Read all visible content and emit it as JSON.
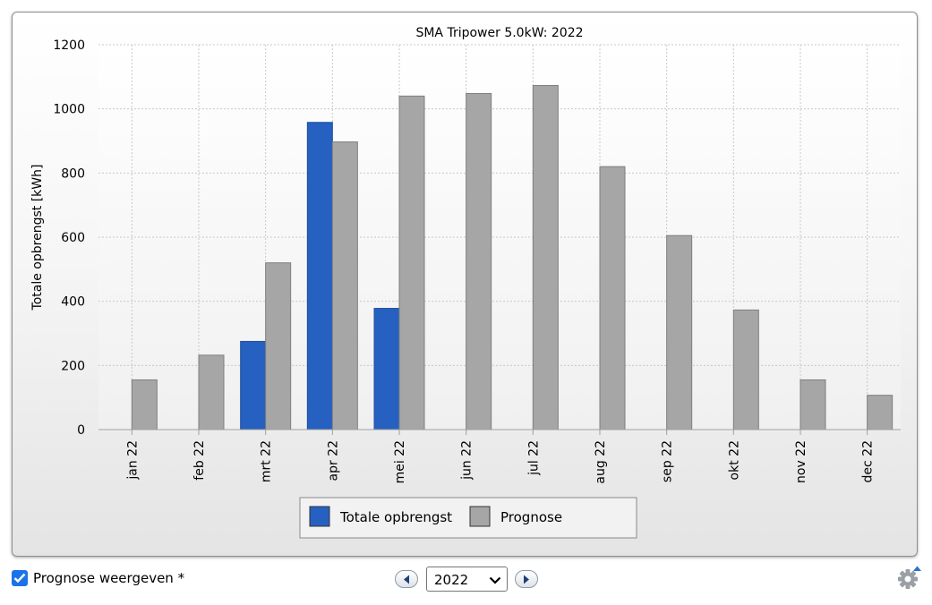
{
  "chart_data": {
    "type": "bar",
    "title": "SMA Tripower 5.0kW: 2022",
    "xlabel": "",
    "ylabel": "Totale opbrengst [kWh]",
    "ylim": [
      0,
      1200
    ],
    "yticks": [
      0,
      200,
      400,
      600,
      800,
      1000,
      1200
    ],
    "categories": [
      "jan 22",
      "feb 22",
      "mrt 22",
      "apr 22",
      "mei 22",
      "jun 22",
      "jul 22",
      "aug 22",
      "sep 22",
      "okt 22",
      "nov 22",
      "dec 22"
    ],
    "series": [
      {
        "name": "Totale opbrengst",
        "color": "#2660c0",
        "values": [
          null,
          null,
          275,
          958,
          378,
          null,
          null,
          null,
          null,
          null,
          null,
          null
        ]
      },
      {
        "name": "Prognose",
        "color": "#a6a6a6",
        "values": [
          155,
          232,
          520,
          897,
          1040,
          1048,
          1073,
          820,
          605,
          373,
          155,
          107
        ]
      }
    ],
    "grid": true,
    "legend_position": "bottom"
  },
  "controls": {
    "show_forecast_label": "Prognose weergeven *",
    "show_forecast_checked": true,
    "year_value": "2022",
    "prev_icon": "chevron-left-icon",
    "next_icon": "chevron-right-icon",
    "settings_icon": "gear-icon"
  }
}
